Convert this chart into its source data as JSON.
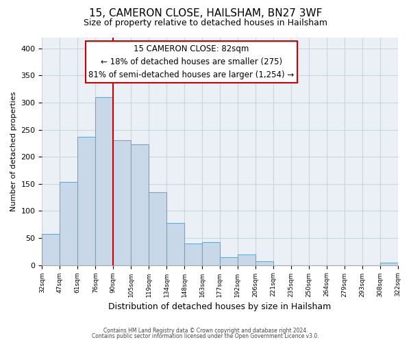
{
  "title_line1": "15, CAMERON CLOSE, HAILSHAM, BN27 3WF",
  "title_line2": "Size of property relative to detached houses in Hailsham",
  "xlabel": "Distribution of detached houses by size in Hailsham",
  "ylabel": "Number of detached properties",
  "bar_labels": [
    "32sqm",
    "47sqm",
    "61sqm",
    "76sqm",
    "90sqm",
    "105sqm",
    "119sqm",
    "134sqm",
    "148sqm",
    "163sqm",
    "177sqm",
    "192sqm",
    "206sqm",
    "221sqm",
    "235sqm",
    "250sqm",
    "264sqm",
    "279sqm",
    "293sqm",
    "308sqm",
    "322sqm"
  ],
  "bar_values": [
    57,
    153,
    237,
    310,
    230,
    223,
    135,
    78,
    40,
    42,
    14,
    20,
    7,
    0,
    0,
    0,
    0,
    0,
    0,
    5
  ],
  "bar_color": "#c8d8e8",
  "bar_edge_color": "#6aaac8",
  "ylim": [
    0,
    420
  ],
  "yticks": [
    0,
    50,
    100,
    150,
    200,
    250,
    300,
    350,
    400
  ],
  "red_line_color": "#cc0000",
  "annotation_title": "15 CAMERON CLOSE: 82sqm",
  "annotation_line1": "← 18% of detached houses are smaller (275)",
  "annotation_line2": "81% of semi-detached houses are larger (1,254) →",
  "footer_line1": "Contains HM Land Registry data © Crown copyright and database right 2024.",
  "footer_line2": "Contains public sector information licensed under the Open Government Licence v3.0.",
  "grid_color": "#c8d4de",
  "background_color": "#eaf0f6"
}
